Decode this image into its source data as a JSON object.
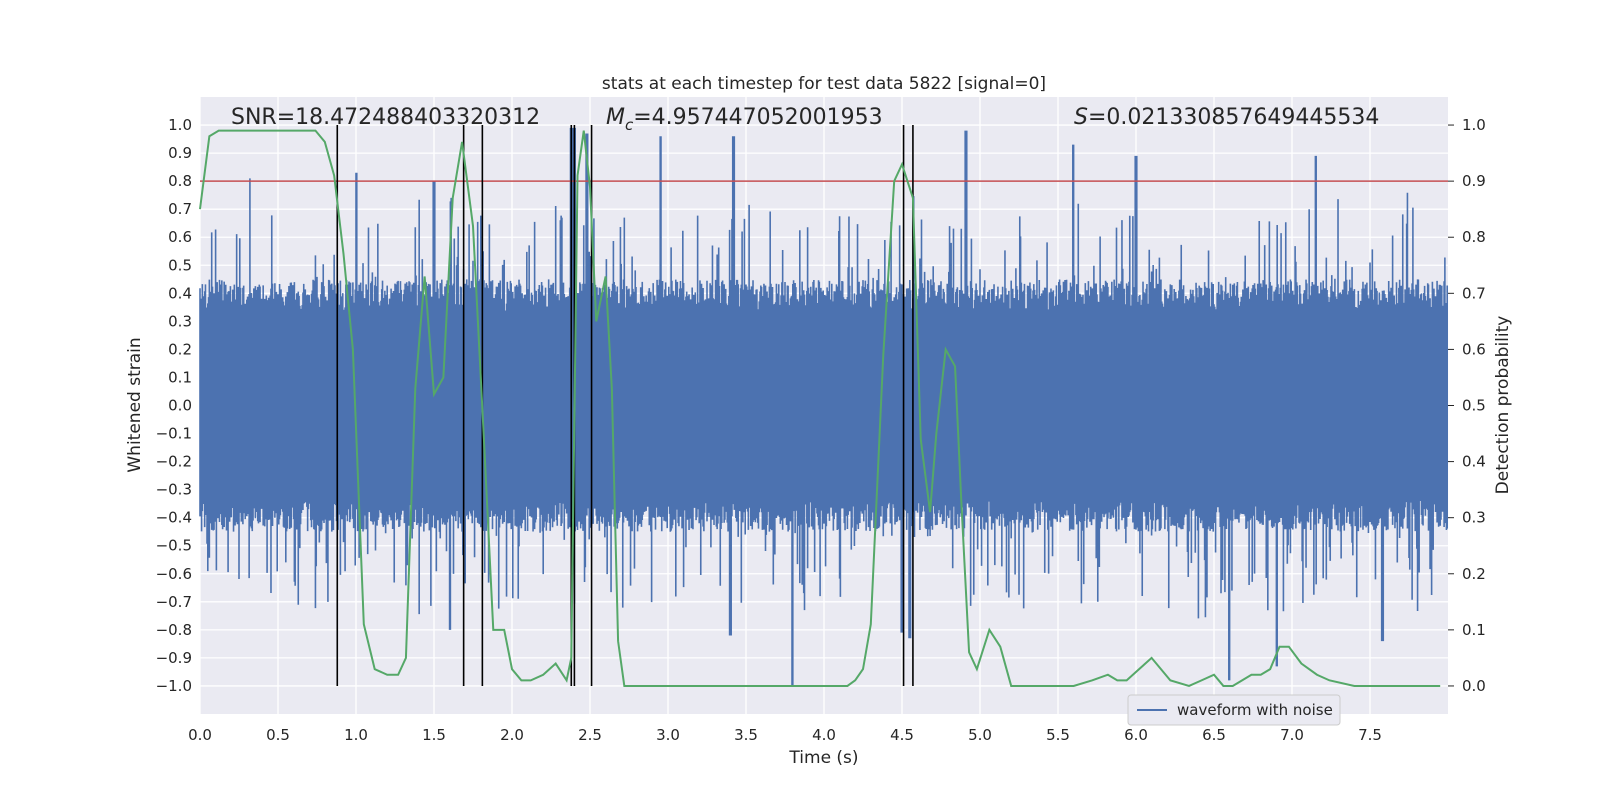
{
  "chart_data": {
    "type": "line",
    "title": "stats at each timestep for test data 5822 [signal=0]",
    "xlabel": "Time (s)",
    "ylabel": "Whitened strain",
    "y2label": "Detection probability",
    "xlim": [
      0,
      8
    ],
    "ylim": [
      -1.1,
      1.1
    ],
    "y2lim": [
      -0.05,
      1.05
    ],
    "xticks": [
      "0.0",
      "0.5",
      "1.0",
      "1.5",
      "2.0",
      "2.5",
      "3.0",
      "3.5",
      "4.0",
      "4.5",
      "5.0",
      "5.5",
      "6.0",
      "6.5",
      "7.0",
      "7.5"
    ],
    "yticks": [
      "1.0",
      "0.9",
      "0.8",
      "0.7",
      "0.6",
      "0.5",
      "0.4",
      "0.3",
      "0.2",
      "0.1",
      "0.0",
      "−0.1",
      "−0.2",
      "−0.3",
      "−0.4",
      "−0.5",
      "−0.6",
      "−0.7",
      "−0.8",
      "−0.9",
      "−1.0"
    ],
    "y2ticks": [
      "1.0",
      "0.9",
      "0.8",
      "0.7",
      "0.6",
      "0.5",
      "0.4",
      "0.3",
      "0.2",
      "0.1",
      "0.0"
    ],
    "annotations": {
      "snr": "SNR=18.472488403320312",
      "mc_symbol": "M",
      "mc_subscript": "c",
      "mc_value": "=4.957447052001953",
      "s_symbol": "S",
      "s_value": "=0.021330857649445534"
    },
    "threshold_line": {
      "value": 0.8,
      "axis": "left",
      "color": "#c44e52"
    },
    "vertical_lines": [
      0.88,
      1.69,
      1.81,
      2.38,
      2.4,
      2.51,
      4.51,
      4.57
    ],
    "vertical_line_range": [
      -1.0,
      1.0
    ],
    "series": [
      {
        "name": "waveform with noise",
        "axis": "left",
        "color": "#4c72b0",
        "description_range": [
          -1.0,
          1.0
        ],
        "typical_envelope": [
          -0.45,
          0.45
        ],
        "notable_peaks": [
          {
            "x": 0.32,
            "y": 0.81
          },
          {
            "x": 1.0,
            "y": 0.83
          },
          {
            "x": 1.5,
            "y": 0.8
          },
          {
            "x": 2.38,
            "y": 0.99
          },
          {
            "x": 2.4,
            "y": 0.99
          },
          {
            "x": 2.48,
            "y": 0.97
          },
          {
            "x": 2.95,
            "y": 0.96
          },
          {
            "x": 3.42,
            "y": 0.96
          },
          {
            "x": 4.91,
            "y": 0.98
          },
          {
            "x": 5.6,
            "y": 0.93
          },
          {
            "x": 6.0,
            "y": 0.89
          },
          {
            "x": 7.15,
            "y": 0.89
          },
          {
            "x": 3.8,
            "y": -1.0
          },
          {
            "x": 4.5,
            "y": -0.81
          },
          {
            "x": 4.55,
            "y": -0.83
          },
          {
            "x": 6.6,
            "y": -0.98
          },
          {
            "x": 6.9,
            "y": -0.93
          },
          {
            "x": 7.58,
            "y": -0.84
          },
          {
            "x": 1.6,
            "y": -0.8
          },
          {
            "x": 3.4,
            "y": -0.82
          },
          {
            "x": 0.82,
            "y": -0.7
          }
        ]
      },
      {
        "name": "detection probability",
        "axis": "right",
        "color": "#55a868",
        "x": [
          0.0,
          0.06,
          0.12,
          0.2,
          0.35,
          0.5,
          0.62,
          0.74,
          0.8,
          0.86,
          0.92,
          0.98,
          1.05,
          1.12,
          1.2,
          1.27,
          1.32,
          1.38,
          1.44,
          1.5,
          1.56,
          1.62,
          1.68,
          1.75,
          1.82,
          1.88,
          1.95,
          2.0,
          2.06,
          2.12,
          2.2,
          2.28,
          2.35,
          2.38,
          2.42,
          2.46,
          2.5,
          2.54,
          2.6,
          2.64,
          2.68,
          2.72,
          2.78,
          2.84,
          2.9,
          3.0,
          3.2,
          3.4,
          3.6,
          3.8,
          4.0,
          4.15,
          4.2,
          4.25,
          4.3,
          4.38,
          4.45,
          4.5,
          4.57,
          4.62,
          4.68,
          4.72,
          4.78,
          4.84,
          4.88,
          4.93,
          4.98,
          5.06,
          5.13,
          5.2,
          5.26,
          5.34,
          5.45,
          5.6,
          5.72,
          5.82,
          5.88,
          5.94,
          6.02,
          6.1,
          6.22,
          6.34,
          6.42,
          6.5,
          6.56,
          6.62,
          6.68,
          6.74,
          6.8,
          6.86,
          6.92,
          6.98,
          7.06,
          7.16,
          7.24,
          7.4,
          7.6,
          7.75,
          7.95
        ],
        "values": [
          0.85,
          0.98,
          0.99,
          0.99,
          0.99,
          0.99,
          0.99,
          0.99,
          0.97,
          0.91,
          0.77,
          0.6,
          0.11,
          0.03,
          0.02,
          0.02,
          0.05,
          0.53,
          0.73,
          0.52,
          0.55,
          0.87,
          0.97,
          0.82,
          0.44,
          0.1,
          0.1,
          0.03,
          0.01,
          0.01,
          0.02,
          0.04,
          0.01,
          0.05,
          0.91,
          0.99,
          0.89,
          0.65,
          0.73,
          0.53,
          0.08,
          0.0,
          0.0,
          0.0,
          0.0,
          0.0,
          0.0,
          0.0,
          0.0,
          0.0,
          0.0,
          0.0,
          0.01,
          0.03,
          0.11,
          0.59,
          0.9,
          0.93,
          0.87,
          0.44,
          0.31,
          0.45,
          0.6,
          0.57,
          0.33,
          0.06,
          0.03,
          0.1,
          0.07,
          0.0,
          0.0,
          0.0,
          0.0,
          0.0,
          0.01,
          0.02,
          0.01,
          0.01,
          0.03,
          0.05,
          0.01,
          0.0,
          0.01,
          0.02,
          0.0,
          0.0,
          0.01,
          0.02,
          0.02,
          0.03,
          0.07,
          0.07,
          0.04,
          0.02,
          0.01,
          0.0,
          0.0,
          0.0,
          0.0
        ]
      }
    ],
    "legend": {
      "entries": [
        "waveform with noise"
      ],
      "placement": "lower-right"
    },
    "grid": true,
    "background": "#eaeaf2"
  }
}
